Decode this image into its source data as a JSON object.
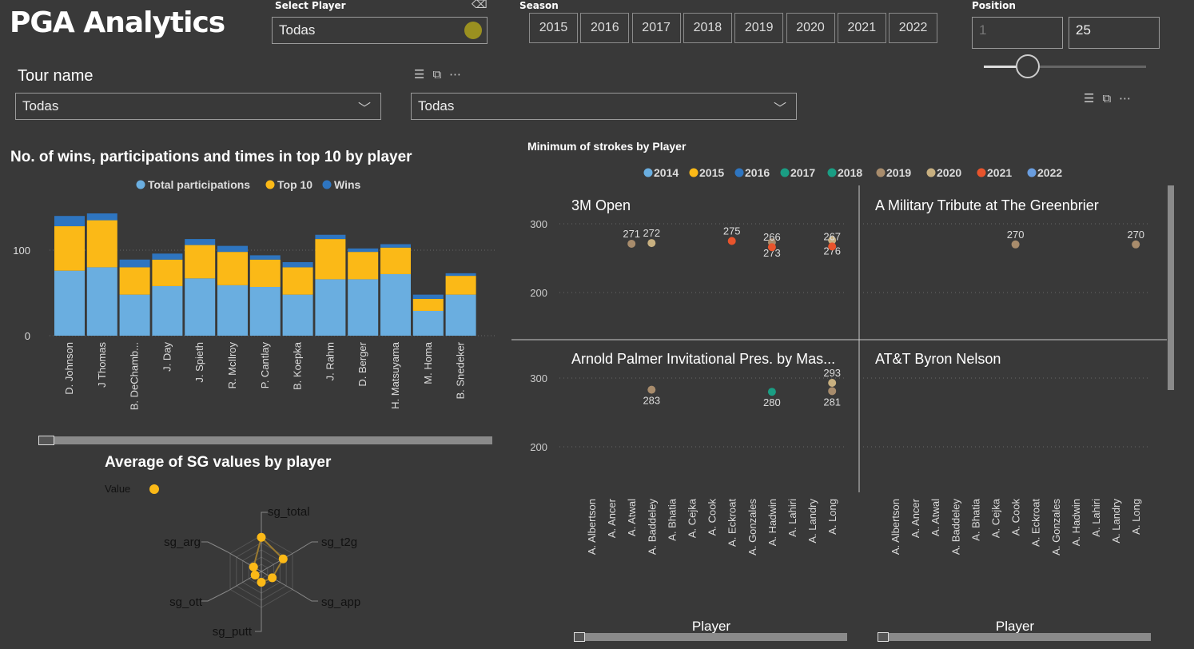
{
  "header": {
    "title": "PGA Analytics"
  },
  "select_player": {
    "label": "Select Player",
    "value": "Todas"
  },
  "season": {
    "label": "Season",
    "years": [
      "2015",
      "2016",
      "2017",
      "2018",
      "2019",
      "2020",
      "2021",
      "2022"
    ]
  },
  "position": {
    "label": "Position",
    "min_value": "1",
    "max_value": "25",
    "slider_fraction": 0.27
  },
  "tour_name": {
    "label": "Tour name",
    "value": "Todas"
  },
  "second_filter": {
    "value": "Todas"
  },
  "colors": {
    "participations": "#6aaee0",
    "top10": "#fbb917",
    "wins": "#2e75c0",
    "y2014": "#6aaee0",
    "y2015": "#fbb917",
    "y2016": "#2e75c0",
    "y2017": "#1a9e84",
    "y2018": "#1a9e84",
    "y2019": "#a88c6c",
    "y2020": "#c8b080",
    "y2021": "#e8542c",
    "y2022": "#6a9ee0"
  },
  "chart_data": [
    {
      "type": "bar",
      "title": "No. of wins, participations and times in top 10 by player",
      "legend": [
        "Total participations",
        "Top 10",
        "Wins"
      ],
      "categories": [
        "D. Johnson",
        "J Thomas",
        "B. DeChamb...",
        "J. Day",
        "J. Spieth",
        "R. McIlroy",
        "P. Cantlay",
        "B. Koepka",
        "J. Rahm",
        "D. Berger",
        "H. Matsuyama",
        "M. Homa",
        "B. Snedeker"
      ],
      "series": [
        {
          "name": "Total participations",
          "values": [
            76,
            80,
            48,
            58,
            67,
            59,
            57,
            48,
            66,
            66,
            72,
            29,
            48
          ]
        },
        {
          "name": "Top 10",
          "values": [
            52,
            55,
            32,
            31,
            39,
            39,
            32,
            32,
            47,
            32,
            31,
            14,
            22
          ]
        },
        {
          "name": "Wins",
          "values": [
            12,
            8,
            9,
            7,
            7,
            7,
            5,
            6,
            5,
            4,
            4,
            5,
            3
          ]
        }
      ],
      "yticks": [
        "0",
        "100"
      ],
      "ylim": [
        0,
        150
      ]
    },
    {
      "type": "scatter",
      "title": "Minimum of strokes by Player",
      "xlabel": "Player",
      "legend": [
        "2014",
        "2015",
        "2016",
        "2017",
        "2018",
        "2019",
        "2020",
        "2021",
        "2022"
      ],
      "players": [
        "A. Albertson",
        "A. Ancer",
        "A. Atwal",
        "A. Baddeley",
        "A. Bhatia",
        "A. Cejka",
        "A. Cook",
        "A. Eckroat",
        "A. Gonzales",
        "A. Hadwin",
        "A. Lahiri",
        "A. Landry",
        "A. Long"
      ],
      "yticks": [
        200,
        300
      ],
      "panels": [
        {
          "title": "3M Open",
          "points": [
            {
              "player": "A. Atwal",
              "y": 271,
              "year": "2019"
            },
            {
              "player": "A. Baddeley",
              "y": 272,
              "year": "2020"
            },
            {
              "player": "A. Eckroat",
              "y": 275,
              "year": "2021"
            },
            {
              "player": "A. Hadwin",
              "y": 273,
              "year": "2019",
              "below": true
            },
            {
              "player": "A. Hadwin",
              "y": 266,
              "year": "2021"
            },
            {
              "player": "A. Long",
              "y": 276,
              "year": "2020",
              "below": true
            },
            {
              "player": "A. Long",
              "y": 267,
              "year": "2021"
            }
          ]
        },
        {
          "title": "A Military Tribute at The Greenbrier",
          "points": [
            {
              "player": "A. Cook",
              "y": 270,
              "year": "2019"
            },
            {
              "player": "A. Long",
              "y": 270,
              "year": "2019"
            }
          ]
        },
        {
          "title": "Arnold Palmer Invitational Pres. by Mas...",
          "points": [
            {
              "player": "A. Baddeley",
              "y": 283,
              "year": "2019",
              "below": true
            },
            {
              "player": "A. Hadwin",
              "y": 280,
              "year": "2017",
              "below": true
            },
            {
              "player": "A. Long",
              "y": 293,
              "year": "2020"
            },
            {
              "player": "A. Long",
              "y": 281,
              "year": "2019",
              "below": true
            }
          ]
        },
        {
          "title": "AT&T Byron Nelson",
          "points": []
        }
      ]
    },
    {
      "type": "radar",
      "title": "Average of SG values by player",
      "legend": [
        "Value"
      ],
      "axes": [
        "sg_total",
        "sg_t2g",
        "sg_app",
        "sg_putt",
        "sg_ott",
        "sg_arg"
      ],
      "values": [
        0.95,
        0.7,
        0.35,
        0.3,
        0.2,
        0.25
      ],
      "max": 1
    }
  ]
}
